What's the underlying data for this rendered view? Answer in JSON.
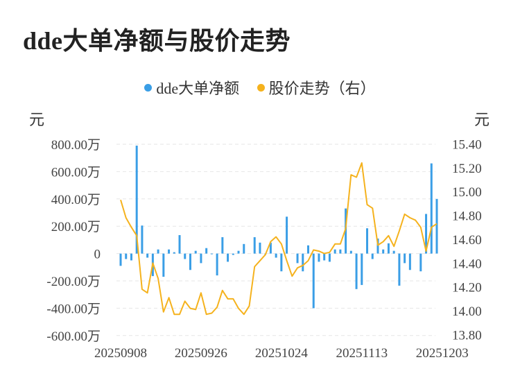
{
  "title": "dde大单净额与股价走势",
  "legend": {
    "series1": "dde大单净额",
    "series2": "股价走势（右）"
  },
  "units": {
    "left": "元",
    "right": "元"
  },
  "colors": {
    "bar": "#3a9ee6",
    "line": "#f5b21d",
    "grid": "#e6e6e6"
  },
  "chart_data": {
    "type": "bar+line",
    "left_axis": {
      "ticks": [
        "800.00万",
        "600.00万",
        "400.00万",
        "200.00万",
        "0",
        "-200.00万",
        "-400.00万",
        "-600.00万"
      ],
      "tick_values": [
        800,
        600,
        400,
        200,
        0,
        -200,
        -400,
        -600
      ],
      "range": [
        -600,
        800
      ],
      "unit": "万元"
    },
    "right_axis": {
      "ticks": [
        "15.40",
        "15.20",
        "15.00",
        "14.80",
        "14.60",
        "14.40",
        "14.20",
        "14.00",
        "13.80"
      ],
      "tick_values": [
        15.4,
        15.2,
        15.0,
        14.8,
        14.6,
        14.4,
        14.2,
        14.0,
        13.8
      ],
      "range": [
        13.8,
        15.4
      ]
    },
    "x_labels": [
      {
        "index": 0,
        "text": "20250908"
      },
      {
        "index": 15,
        "text": "20250926"
      },
      {
        "index": 30,
        "text": "20251024"
      },
      {
        "index": 45,
        "text": "20251113"
      },
      {
        "index": 60,
        "text": "20251203"
      }
    ],
    "series": [
      {
        "name": "dde大单净额",
        "axis": "left",
        "values": [
          -90,
          -40,
          -50,
          790,
          205,
          -30,
          -165,
          30,
          -170,
          30,
          10,
          135,
          -40,
          -120,
          20,
          -70,
          40,
          -5,
          -160,
          120,
          -60,
          -10,
          20,
          70,
          0,
          120,
          80,
          -5,
          80,
          -30,
          -130,
          270,
          0,
          -70,
          -130,
          60,
          -400,
          -60,
          -50,
          -60,
          30,
          30,
          330,
          20,
          -260,
          -230,
          185,
          -40,
          110,
          30,
          75,
          20,
          -235,
          -70,
          -120,
          0,
          -130,
          290,
          660,
          400
        ]
      },
      {
        "name": "股价走势（右）",
        "axis": "right",
        "values": [
          14.93,
          14.78,
          14.7,
          14.63,
          14.18,
          14.15,
          14.4,
          14.27,
          13.99,
          14.11,
          13.97,
          13.97,
          14.08,
          14.02,
          14.01,
          14.15,
          13.97,
          13.98,
          14.03,
          14.17,
          14.1,
          14.1,
          14.02,
          13.97,
          14.04,
          14.37,
          14.42,
          14.47,
          14.58,
          14.62,
          14.56,
          14.42,
          14.29,
          14.36,
          14.38,
          14.42,
          14.51,
          14.5,
          14.48,
          14.49,
          14.56,
          14.56,
          14.69,
          15.14,
          15.12,
          15.24,
          14.89,
          14.86,
          14.55,
          14.58,
          14.63,
          14.54,
          14.67,
          14.81,
          14.78,
          14.76,
          14.7,
          14.5,
          14.7,
          14.73
        ]
      }
    ]
  }
}
